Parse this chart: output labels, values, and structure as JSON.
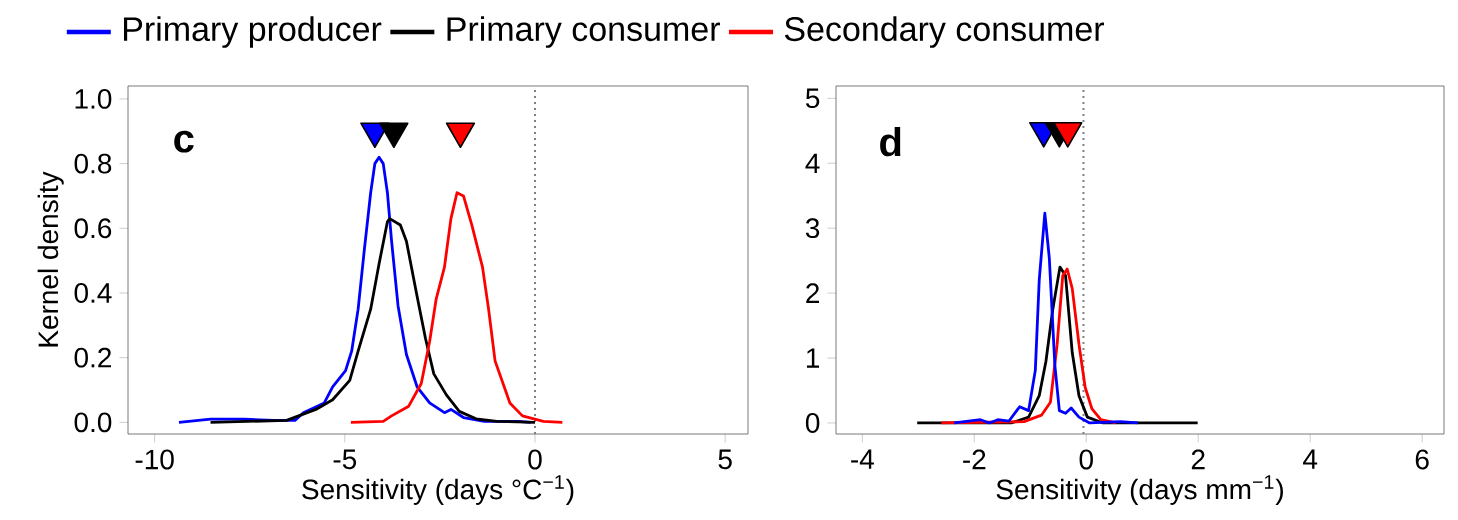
{
  "chart_data": [
    {
      "type": "line",
      "xlabel": "Sensitivity (days °C$^{−1}$)",
      "ylabel": "Kernel density",
      "annotations": [
        "c"
      ],
      "legend": "top",
      "line_style": "solid",
      "xlim": [
        -10.7,
        5.6
      ],
      "ylim": [
        -0.036,
        1.04
      ],
      "xticks": [
        -10,
        -5,
        0,
        5
      ],
      "yticks": [
        {
          "value": 0,
          "label": "0.0"
        },
        {
          "value": 0.2,
          "label": "0.2"
        },
        {
          "value": 0.4,
          "label": "0.4"
        },
        {
          "value": 0.6,
          "label": "0.6"
        },
        {
          "value": 0.8,
          "label": "0.8"
        },
        {
          "value": 1,
          "label": "1.0"
        }
      ],
      "ref_lines": [
        {
          "axis": "x",
          "value": 0,
          "color": "#808080",
          "line_style": "dotted"
        }
      ],
      "series": [
        {
          "name": "Primary producer",
          "color": "#0000ff",
          "x": [
            -9.36,
            -8.53,
            -7.64,
            -6.87,
            -6.31,
            -6.09,
            -5.54,
            -5.32,
            -4.98,
            -4.82,
            -4.65,
            -4.49,
            -4.32,
            -4.21,
            -4.1,
            -3.99,
            -3.88,
            -3.77,
            -3.6,
            -3.38,
            -3.1,
            -2.77,
            -2.38,
            -2.21,
            -1.88,
            -1.33,
            -0.44,
            -0.11
          ],
          "values": [
            0,
            0.01,
            0.01,
            0.006,
            0.006,
            0.03,
            0.06,
            0.11,
            0.16,
            0.22,
            0.35,
            0.53,
            0.71,
            0.8,
            0.82,
            0.8,
            0.71,
            0.56,
            0.36,
            0.21,
            0.11,
            0.06,
            0.03,
            0.04,
            0.015,
            0.003,
            0.003,
            0
          ]
        },
        {
          "name": "Primary consumer",
          "color": "#000000",
          "x": [
            -8.53,
            -6.53,
            -5.76,
            -5.32,
            -4.87,
            -4.65,
            -4.32,
            -4.1,
            -3.88,
            -3.82,
            -3.54,
            -3.38,
            -3.1,
            -2.88,
            -2.66,
            -2.33,
            -1.99,
            -1.55,
            -1.0,
            0
          ],
          "values": [
            0,
            0.006,
            0.04,
            0.07,
            0.13,
            0.22,
            0.35,
            0.49,
            0.62,
            0.63,
            0.61,
            0.56,
            0.39,
            0.26,
            0.15,
            0.085,
            0.034,
            0.011,
            0.003,
            0
          ]
        },
        {
          "name": "Secondary consumer",
          "color": "#ff0000",
          "x": [
            -4.84,
            -3.99,
            -3.77,
            -3.32,
            -2.99,
            -2.77,
            -2.6,
            -2.38,
            -2.21,
            -2.05,
            -1.88,
            -1.66,
            -1.38,
            -1.22,
            -1.05,
            -0.66,
            -0.33,
            0.22,
            0.72
          ],
          "values": [
            0,
            0.003,
            0.02,
            0.05,
            0.12,
            0.25,
            0.38,
            0.48,
            0.63,
            0.71,
            0.7,
            0.61,
            0.48,
            0.35,
            0.19,
            0.06,
            0.02,
            0.003,
            0
          ]
        },
        {
          "type": "scatter",
          "marker": "triangle",
          "color": "#0000ff",
          "x": [
            -4.21
          ],
          "values": [
            0.9
          ]
        },
        {
          "type": "scatter",
          "marker": "triangle",
          "color": "#000000",
          "x": [
            -3.71
          ],
          "values": [
            0.9
          ]
        },
        {
          "type": "scatter",
          "marker": "triangle",
          "color": "#ff0000",
          "x": [
            -1.96
          ],
          "values": [
            0.9
          ]
        }
      ]
    },
    {
      "type": "line",
      "xlabel": "Sensitivity (days mm$^{−1}$)",
      "annotations": [
        "d"
      ],
      "line_style": "solid",
      "xlim": [
        -4.47,
        6.39
      ],
      "ylim": [
        -0.17,
        5.19
      ],
      "xticks": [
        -4,
        -2,
        0,
        2,
        4,
        6
      ],
      "yticks": [
        0,
        1,
        2,
        3,
        4,
        5
      ],
      "ref_lines": [
        {
          "axis": "x",
          "value": -0.05,
          "color": "#808080",
          "line_style": "dotted"
        }
      ],
      "series": [
        {
          "color": "#000000",
          "x": [
            -3.02,
            -1.34,
            -1.03,
            -0.84,
            -0.72,
            -0.6,
            -0.47,
            -0.37,
            -0.25,
            -0.13,
            0.02,
            0.3,
            1.99
          ],
          "values": [
            0,
            0,
            0.09,
            0.42,
            0.95,
            1.74,
            2.4,
            2.27,
            1.08,
            0.42,
            0.09,
            0,
            0
          ]
        },
        {
          "color": "#ff0000",
          "x": [
            -2.59,
            -1.11,
            -0.8,
            -0.64,
            -0.52,
            -0.42,
            -0.34,
            -0.25,
            -0.13,
            -0.02,
            0.1,
            0.26,
            0.53
          ],
          "values": [
            0,
            0.02,
            0.12,
            0.32,
            1.21,
            2.27,
            2.37,
            2.07,
            1.21,
            0.55,
            0.22,
            0.05,
            0
          ]
        },
        {
          "color": "#0000ff",
          "x": [
            -2.36,
            -1.89,
            -1.73,
            -1.58,
            -1.38,
            -1.19,
            -1.03,
            -0.91,
            -0.84,
            -0.74,
            -0.66,
            -0.56,
            -0.48,
            -0.37,
            -0.27,
            -0.13,
            0.06,
            0.61,
            0.92
          ],
          "values": [
            0,
            0.05,
            0,
            0.05,
            0.03,
            0.25,
            0.19,
            0.81,
            2.2,
            3.23,
            2.54,
            0.88,
            0.19,
            0.15,
            0.23,
            0.09,
            0,
            0.02,
            0
          ]
        },
        {
          "type": "scatter",
          "marker": "triangle",
          "color": "#0000ff",
          "x": [
            -0.76
          ],
          "values": [
            4.5
          ]
        },
        {
          "type": "scatter",
          "marker": "triangle",
          "color": "#000000",
          "x": [
            -0.48
          ],
          "values": [
            4.5
          ]
        },
        {
          "type": "scatter",
          "marker": "triangle",
          "color": "#ff0000",
          "x": [
            -0.33
          ],
          "values": [
            4.5
          ]
        }
      ]
    }
  ]
}
